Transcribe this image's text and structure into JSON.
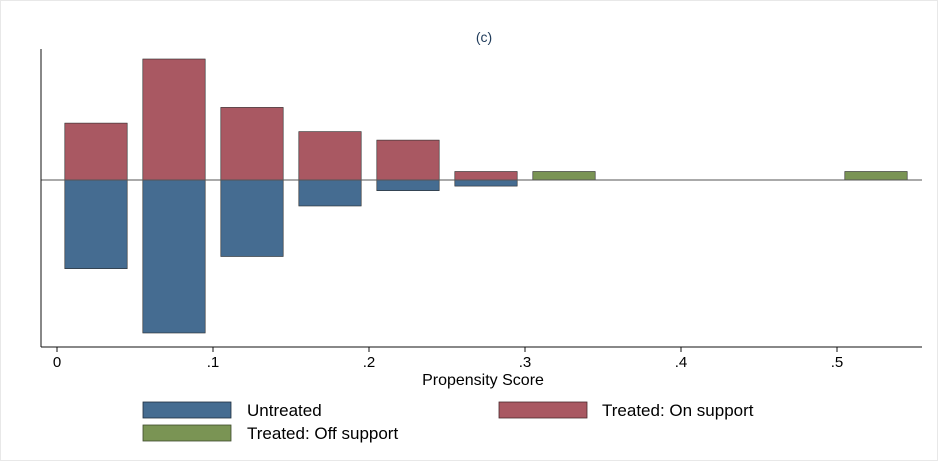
{
  "chart_data": {
    "type": "bar",
    "title": "(c)",
    "xlabel": "Propensity Score",
    "ylabel": "",
    "xlim": [
      0,
      0.55
    ],
    "ylim": [
      -1.05,
      1.0
    ],
    "x_ticks": [
      {
        "value": 0,
        "label": "0"
      },
      {
        "value": 0.1,
        "label": ".1"
      },
      {
        "value": 0.2,
        "label": ".2"
      },
      {
        "value": 0.3,
        "label": ".3"
      },
      {
        "value": 0.4,
        "label": ".4"
      },
      {
        "value": 0.5,
        "label": ".5"
      }
    ],
    "grid": false,
    "legend_position": "bottom",
    "series": [
      {
        "name": "Untreated",
        "color": "#456c91",
        "direction": "down",
        "bins": [
          {
            "x0": 0.005,
            "x1": 0.045,
            "value": 0.58
          },
          {
            "x0": 0.055,
            "x1": 0.095,
            "value": 1.0
          },
          {
            "x0": 0.105,
            "x1": 0.145,
            "value": 0.5
          },
          {
            "x0": 0.155,
            "x1": 0.195,
            "value": 0.17
          },
          {
            "x0": 0.205,
            "x1": 0.245,
            "value": 0.07
          },
          {
            "x0": 0.255,
            "x1": 0.295,
            "value": 0.04
          }
        ]
      },
      {
        "name": "Treated: On support",
        "color": "#a95862",
        "direction": "up",
        "bins": [
          {
            "x0": 0.005,
            "x1": 0.045,
            "value": 0.47
          },
          {
            "x0": 0.055,
            "x1": 0.095,
            "value": 1.0
          },
          {
            "x0": 0.105,
            "x1": 0.145,
            "value": 0.6
          },
          {
            "x0": 0.155,
            "x1": 0.195,
            "value": 0.4
          },
          {
            "x0": 0.205,
            "x1": 0.245,
            "value": 0.33
          },
          {
            "x0": 0.255,
            "x1": 0.295,
            "value": 0.07
          }
        ]
      },
      {
        "name": "Treated: Off support",
        "color": "#7a9454",
        "direction": "up",
        "bins": [
          {
            "x0": 0.305,
            "x1": 0.345,
            "value": 0.07
          },
          {
            "x0": 0.505,
            "x1": 0.545,
            "value": 0.07
          }
        ]
      }
    ]
  }
}
